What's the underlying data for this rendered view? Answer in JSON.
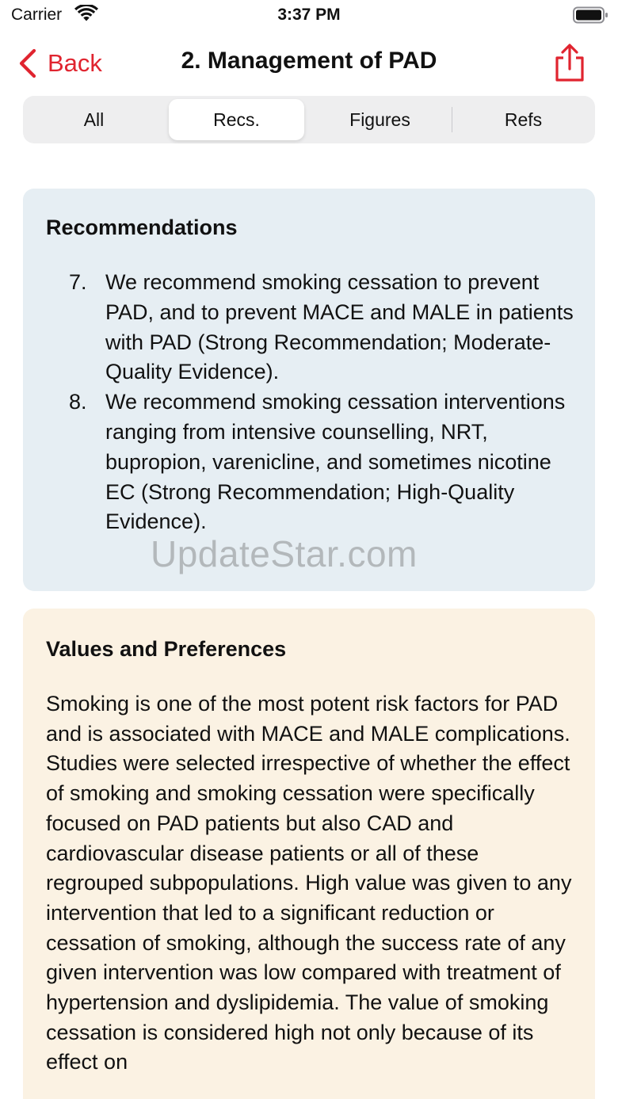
{
  "status_bar": {
    "carrier": "Carrier",
    "time": "3:37 PM"
  },
  "nav": {
    "back_label": "Back",
    "title": "2. Management of PAD"
  },
  "segments": [
    {
      "label": "All"
    },
    {
      "label": "Recs."
    },
    {
      "label": "Figures"
    },
    {
      "label": "Refs"
    }
  ],
  "selected_segment": "Recs.",
  "recommendations": {
    "title": "Recommendations",
    "items": [
      {
        "num": "7.",
        "text": "We recommend smoking cessation to prevent PAD, and to prevent MACE and MALE in patients with PAD (Strong Recommendation; Moderate-Quality Evidence)."
      },
      {
        "num": "8.",
        "text": "We recommend smoking cessation interventions ranging from intensive counselling, NRT, bupropion, varenicline, and sometimes nicotine EC (Strong Recommendation; High-Quality Evidence)."
      }
    ]
  },
  "values_preferences": {
    "title": "Values and Preferences",
    "body": "Smoking is one of the most potent risk factors for PAD and is associated with MACE and MALE complications. Studies were selected irrespective of whether the effect of smoking and smoking cessation were specifically focused on PAD patients but also CAD and cardiovascular disease patients or all of these regrouped subpopulations. High value was given to any intervention that led to a significant reduction or cessation of smoking, although the success rate of any given intervention was low compared with treatment of hypertension and dyslipidemia. The value of smoking cessation is considered high not only because of its effect on"
  },
  "watermark": "UpdateStar.com",
  "colors": {
    "accent": "#e0242f",
    "rec_card_bg": "#e6eef3",
    "vp_card_bg": "#fbf2e3",
    "segment_bg": "#eeeeef"
  }
}
